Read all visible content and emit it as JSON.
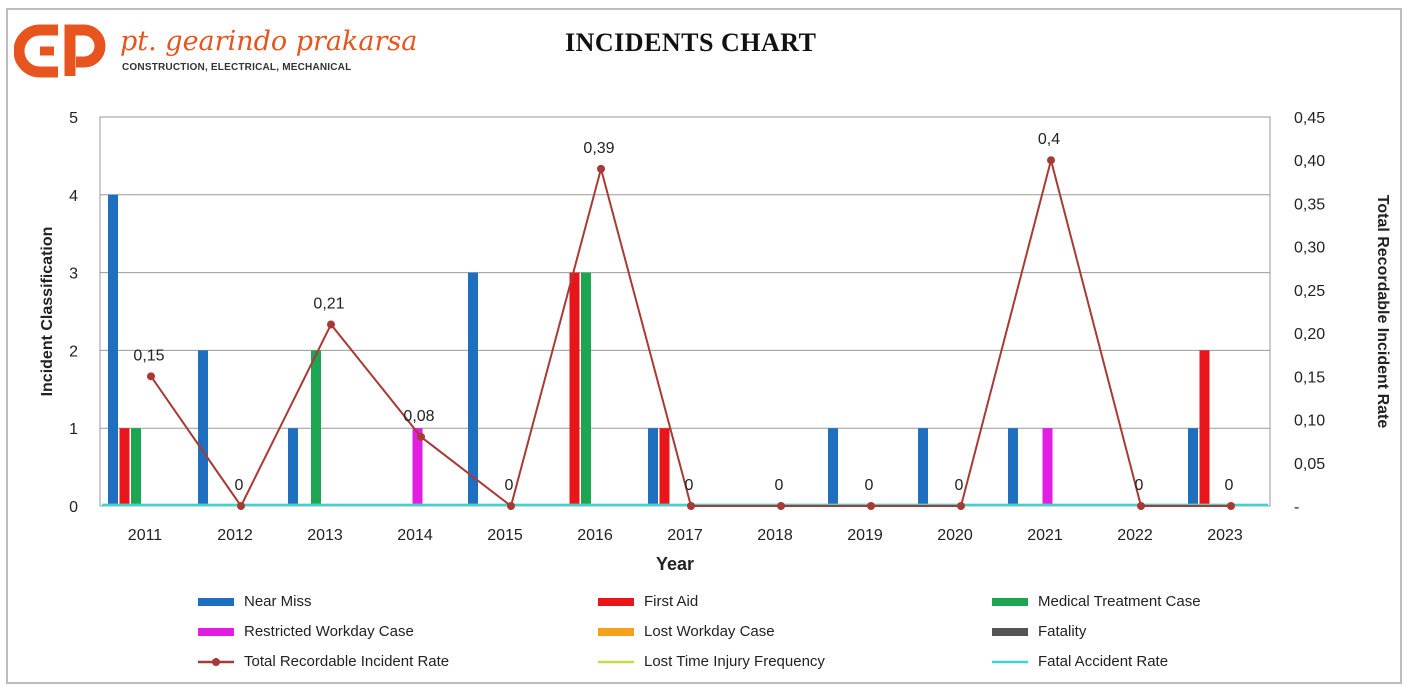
{
  "header": {
    "company_name": "pt. gearindo prakarsa",
    "tagline": "CONSTRUCTION, ELECTRICAL, MECHANICAL",
    "title": "INCIDENTS CHART",
    "brand_color": "#e8541e",
    "logo_icon": "gp-monogram-logo"
  },
  "chart_data": {
    "type": "bar",
    "title": "INCIDENTS CHART",
    "xlabel": "Year",
    "ylabel": "Incident Classification",
    "y2label": "Total Recordable Incident Rate",
    "categories": [
      "2011",
      "2012",
      "2013",
      "2014",
      "2015",
      "2016",
      "2017",
      "2018",
      "2019",
      "2020",
      "2021",
      "2022",
      "2023"
    ],
    "ylim": [
      0,
      5
    ],
    "yticks": [
      "0",
      "1",
      "2",
      "3",
      "4",
      "5"
    ],
    "y2lim": [
      0,
      0.45
    ],
    "y2ticks": [
      "-",
      "0,05",
      "0,10",
      "0,15",
      "0,20",
      "0,25",
      "0,30",
      "0,35",
      "0,40",
      "0,45"
    ],
    "grid": true,
    "legend_position": "bottom",
    "series": [
      {
        "name": "Near Miss",
        "kind": "bar",
        "color": "#1f6fc0",
        "values": [
          4,
          2,
          1,
          0,
          3,
          0,
          1,
          0,
          1,
          1,
          1,
          0,
          1
        ]
      },
      {
        "name": "First Aid",
        "kind": "bar",
        "color": "#e8161b",
        "values": [
          1,
          0,
          0,
          0,
          0,
          3,
          1,
          0,
          0,
          0,
          0,
          0,
          2
        ]
      },
      {
        "name": "Medical Treatment Case",
        "kind": "bar",
        "color": "#1ca652",
        "values": [
          1,
          0,
          2,
          0,
          0,
          3,
          0,
          0,
          0,
          0,
          0,
          0,
          0
        ]
      },
      {
        "name": "Restricted Workday Case",
        "kind": "bar",
        "color": "#e11ee1",
        "values": [
          0,
          0,
          0,
          1,
          0,
          0,
          0,
          0,
          0,
          0,
          1,
          0,
          0
        ]
      },
      {
        "name": "Lost Workday Case",
        "kind": "bar",
        "color": "#f4a21c",
        "values": [
          0,
          0,
          0,
          0,
          0,
          0,
          0,
          0,
          0,
          0,
          0,
          0,
          0
        ]
      },
      {
        "name": "Fatality",
        "kind": "bar",
        "color": "#555555",
        "values": [
          0,
          0,
          0,
          0,
          0,
          0,
          0,
          0,
          0,
          0,
          0,
          0,
          0
        ]
      },
      {
        "name": "Total Recordable Incident Rate",
        "kind": "line",
        "axis": "y2",
        "color": "#a83a36",
        "values": [
          0.15,
          0,
          0.21,
          0.08,
          0,
          0.39,
          0,
          0,
          0,
          0,
          0.4,
          0,
          0
        ],
        "labels": [
          "0,15",
          "0",
          "0,21",
          "0,08",
          "0",
          "0,39",
          "0",
          "0",
          "0",
          "0",
          "0,4",
          "0",
          "0"
        ]
      },
      {
        "name": "Lost Time Injury Frequency",
        "kind": "line",
        "axis": "y2",
        "color": "#c8d84a",
        "values": [
          0,
          0,
          0,
          0,
          0,
          0,
          0,
          0,
          0,
          0,
          0,
          0,
          0
        ]
      },
      {
        "name": "Fatal Accident Rate",
        "kind": "line",
        "axis": "y2",
        "color": "#3fd3d8",
        "values": [
          0,
          0,
          0,
          0,
          0,
          0,
          0,
          0,
          0,
          0,
          0,
          0,
          0
        ]
      }
    ]
  }
}
